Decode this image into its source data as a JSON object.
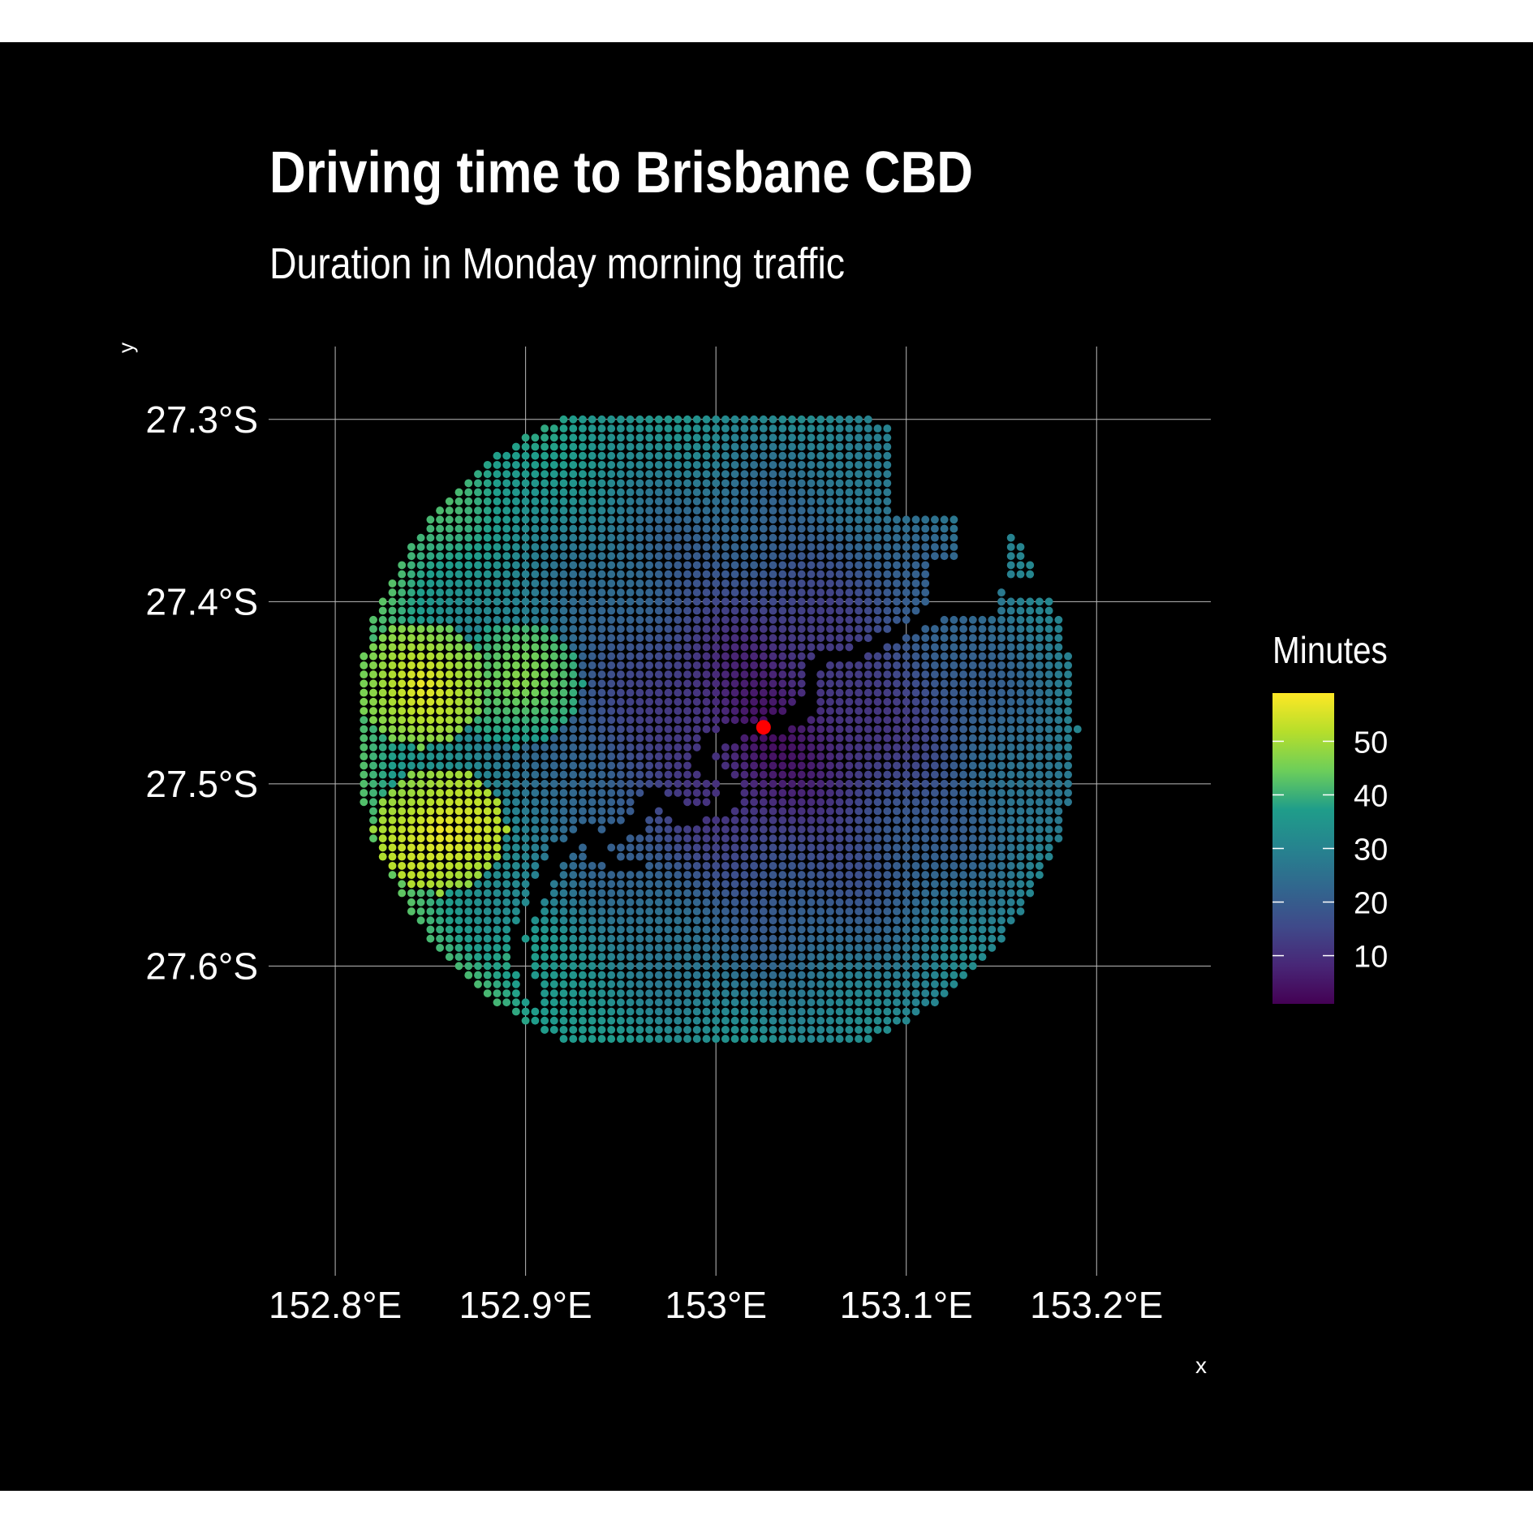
{
  "chart_data": {
    "type": "scatter",
    "title": "Driving time to Brisbane CBD",
    "subtitle": "Duration in Monday morning traffic",
    "xlabel": "x",
    "ylabel": "y",
    "x_ticks": [
      "152.8°E",
      "152.9°E",
      "153°E",
      "153.1°E",
      "153.2°E"
    ],
    "x_tick_values": [
      152.8,
      152.9,
      153.0,
      153.1,
      153.2
    ],
    "y_ticks": [
      "27.3°S",
      "27.4°S",
      "27.5°S",
      "27.6°S"
    ],
    "y_tick_values": [
      -27.3,
      -27.4,
      -27.5,
      -27.6
    ],
    "xlim": [
      152.765,
      153.26
    ],
    "ylim": [
      -27.77,
      -27.26
    ],
    "grid": true,
    "legend": {
      "title": "Minutes",
      "position": "right",
      "ticks": [
        "10",
        "20",
        "30",
        "40",
        "50"
      ],
      "tick_values": [
        10,
        20,
        30,
        40,
        50
      ],
      "range": [
        1,
        59
      ],
      "palette": [
        "#440154",
        "#482777",
        "#3f4a8a",
        "#31678e",
        "#26838f",
        "#1f9d8a",
        "#6cce5a",
        "#b6de2b",
        "#fee825"
      ]
    },
    "center": {
      "x": 153.025,
      "y": -27.469,
      "color": "#ff0000"
    },
    "grid_spacing": 0.005,
    "disk_radius": 0.19,
    "hotspots": [
      {
        "x": 152.845,
        "y": -27.445,
        "minutes": 55
      },
      {
        "x": 152.895,
        "y": -27.445,
        "minutes": 47
      },
      {
        "x": 152.855,
        "y": -27.525,
        "minutes": 58
      },
      {
        "x": 152.84,
        "y": -27.545,
        "minutes": 44
      },
      {
        "x": 152.89,
        "y": -27.595,
        "minutes": 40
      }
    ],
    "water_paths": [
      [
        [
          153.14,
          -27.385
        ],
        [
          153.125,
          -27.39
        ],
        [
          153.12,
          -27.4
        ],
        [
          153.11,
          -27.41
        ],
        [
          153.09,
          -27.42
        ],
        [
          153.07,
          -27.43
        ],
        [
          153.055,
          -27.43
        ],
        [
          153.05,
          -27.44
        ],
        [
          153.05,
          -27.455
        ],
        [
          153.04,
          -27.465
        ],
        [
          153.03,
          -27.468
        ]
      ],
      [
        [
          153.03,
          -27.47
        ],
        [
          153.01,
          -27.47
        ],
        [
          152.995,
          -27.48
        ],
        [
          152.99,
          -27.49
        ],
        [
          153.005,
          -27.495
        ],
        [
          153.01,
          -27.51
        ],
        [
          152.995,
          -27.515
        ],
        [
          152.985,
          -27.52
        ]
      ],
      [
        [
          152.985,
          -27.52
        ],
        [
          152.975,
          -27.51
        ],
        [
          152.965,
          -27.505
        ],
        [
          152.96,
          -27.52
        ],
        [
          152.945,
          -27.53
        ],
        [
          152.93,
          -27.528
        ],
        [
          152.94,
          -27.54
        ],
        [
          152.95,
          -27.545
        ],
        [
          152.96,
          -27.545
        ]
      ],
      [
        [
          152.93,
          -27.528
        ],
        [
          152.915,
          -27.54
        ],
        [
          152.905,
          -27.565
        ],
        [
          152.895,
          -27.585
        ],
        [
          152.9,
          -27.605
        ],
        [
          152.905,
          -27.62
        ]
      ],
      [
        [
          153.14,
          -27.385
        ],
        [
          153.165,
          -27.395
        ],
        [
          153.18,
          -27.38
        ]
      ]
    ]
  }
}
